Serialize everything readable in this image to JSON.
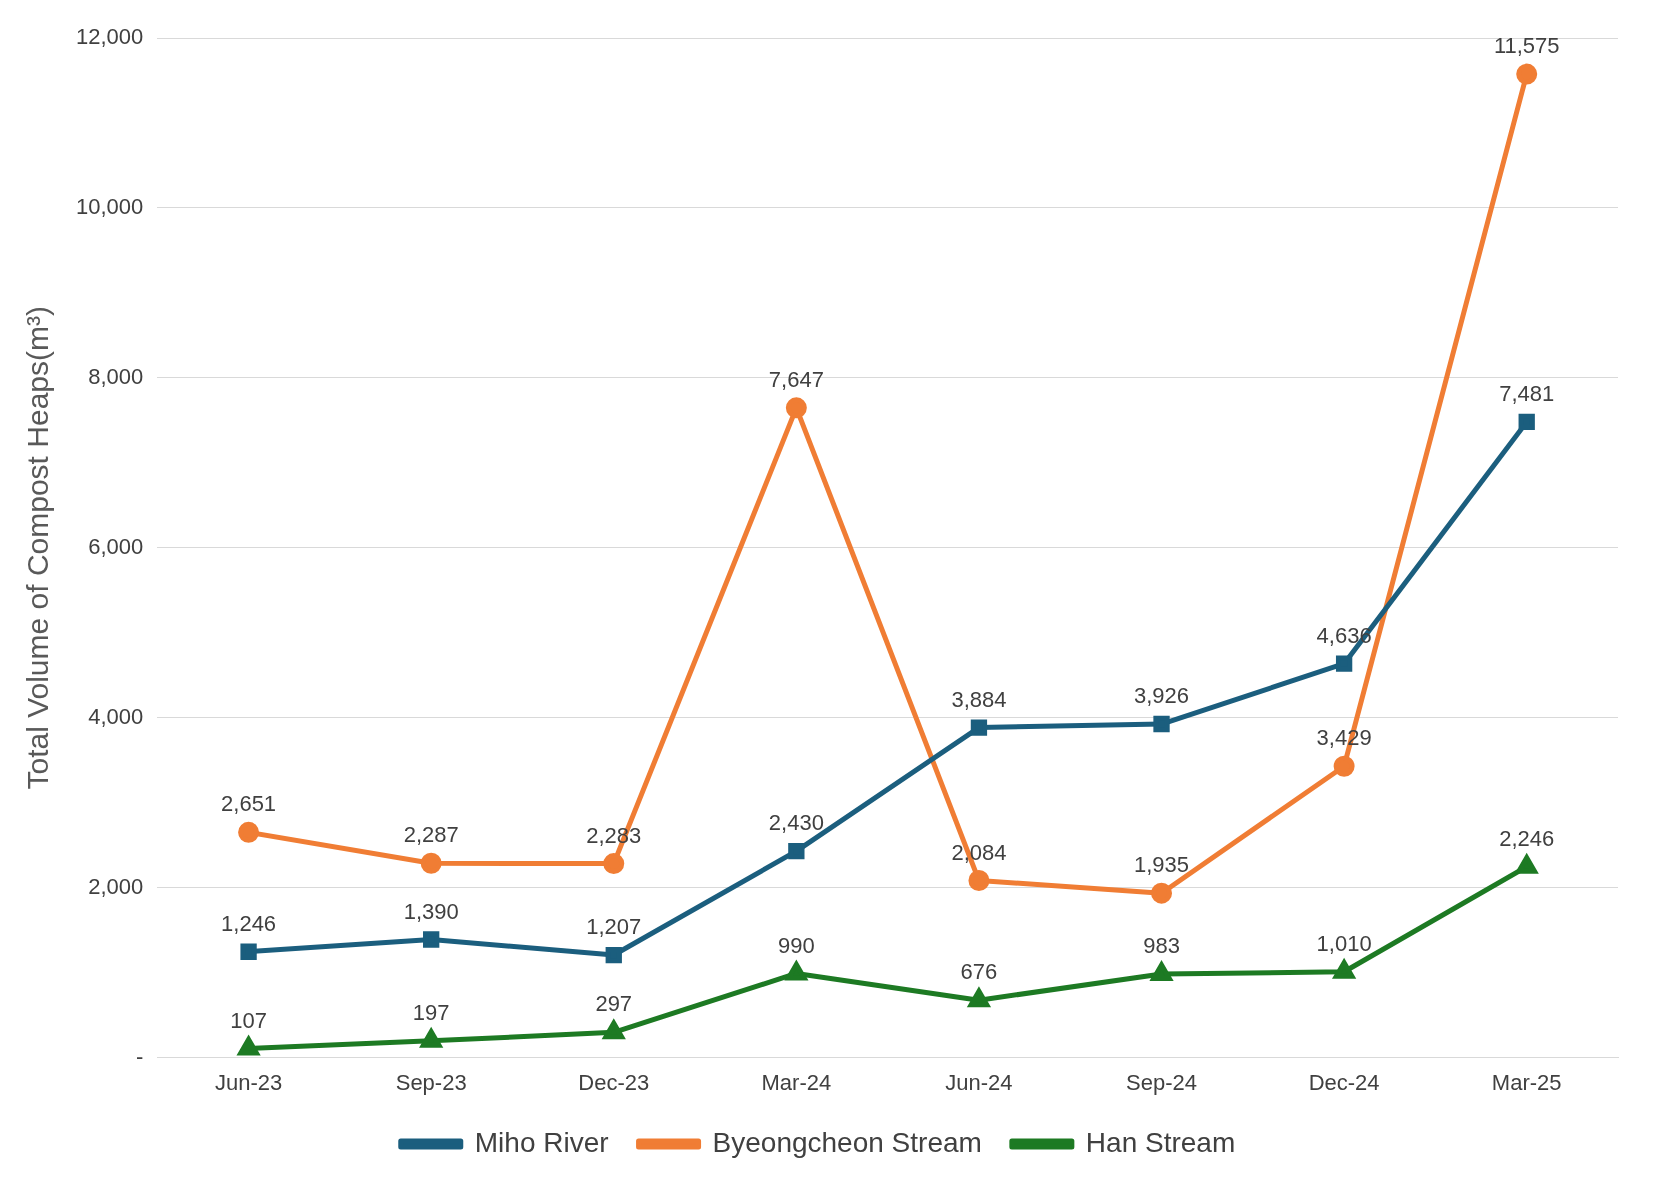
{
  "chart_data": {
    "type": "line",
    "ylabel": "Total Volume of Compost Heaps(m³)",
    "categories": [
      "Jun-23",
      "Sep-23",
      "Dec-23",
      "Mar-24",
      "Jun-24",
      "Sep-24",
      "Dec-24",
      "Mar-25"
    ],
    "series": [
      {
        "name": "Miho River",
        "color": "#1b5e7e",
        "marker": "square",
        "values": [
          1246,
          1390,
          1207,
          2430,
          3884,
          3926,
          4636,
          7481
        ],
        "value_labels": [
          "1,246",
          "1,390",
          "1,207",
          "2,430",
          "3,884",
          "3,926",
          "4,636",
          "7,481"
        ]
      },
      {
        "name": "Byeongcheon Stream",
        "color": "#f07d34",
        "marker": "circle",
        "values": [
          2651,
          2287,
          2283,
          7647,
          2084,
          1935,
          3429,
          11575
        ],
        "value_labels": [
          "2,651",
          "2,287",
          "2,283",
          "7,647",
          "2,084",
          "1,935",
          "3,429",
          "11,575"
        ]
      },
      {
        "name": "Han Stream",
        "color": "#1d7a23",
        "marker": "triangle",
        "values": [
          107,
          197,
          297,
          990,
          676,
          983,
          1010,
          2246
        ],
        "value_labels": [
          "107",
          "197",
          "297",
          "990",
          "676",
          "983",
          "1,010",
          "2,246"
        ]
      }
    ],
    "ylim": [
      0,
      12000
    ],
    "yticks": [
      {
        "value": 0,
        "label": "-"
      },
      {
        "value": 2000,
        "label": "2,000"
      },
      {
        "value": 4000,
        "label": "4,000"
      },
      {
        "value": 6000,
        "label": "6,000"
      },
      {
        "value": 8000,
        "label": "8,000"
      },
      {
        "value": 10000,
        "label": "10,000"
      },
      {
        "value": 12000,
        "label": "12,000"
      }
    ],
    "grid": "y",
    "legend": "bottom",
    "line_style": "solid"
  }
}
